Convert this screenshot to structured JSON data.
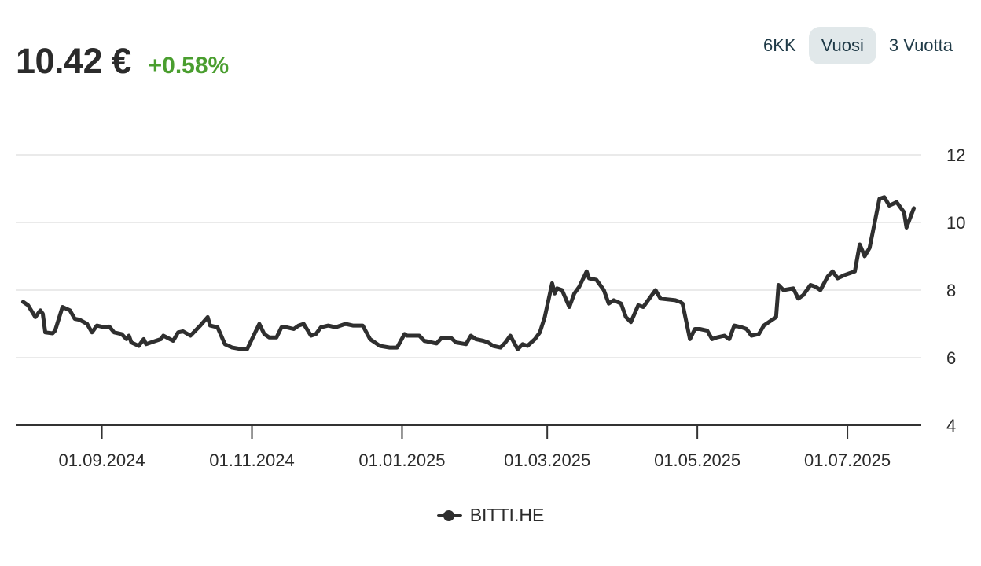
{
  "header": {
    "price": "10.42 €",
    "change": "+0.58%"
  },
  "range_tabs": [
    {
      "label": "6KK",
      "active": false
    },
    {
      "label": "Vuosi",
      "active": true
    },
    {
      "label": "3 Vuotta",
      "active": false
    }
  ],
  "colors": {
    "line": "#2f2f2f",
    "positive": "#4a9e2f",
    "grid": "#e3e3e3",
    "active_tab_bg": "#e1e8ea"
  },
  "chart_data": {
    "type": "line",
    "title": "",
    "xlabel": "",
    "ylabel": "",
    "ylim": [
      4,
      12
    ],
    "yticks": [
      4,
      6,
      8,
      10,
      12
    ],
    "xlim": [
      "2024-07-28",
      "2025-07-31"
    ],
    "xticks": [
      {
        "date": "2024-09-01",
        "label": "01.09.2024"
      },
      {
        "date": "2024-11-01",
        "label": "01.11.2024"
      },
      {
        "date": "2025-01-01",
        "label": "01.01.2025"
      },
      {
        "date": "2025-03-01",
        "label": "01.03.2025"
      },
      {
        "date": "2025-05-01",
        "label": "01.05.2025"
      },
      {
        "date": "2025-07-01",
        "label": "01.07.2025"
      }
    ],
    "grid": true,
    "legend_position": "bottom-center",
    "series": [
      {
        "name": "BITTI.HE",
        "points": [
          [
            "2024-07-31",
            7.65
          ],
          [
            "2024-08-02",
            7.55
          ],
          [
            "2024-08-05",
            7.2
          ],
          [
            "2024-08-07",
            7.4
          ],
          [
            "2024-08-08",
            7.3
          ],
          [
            "2024-08-09",
            6.75
          ],
          [
            "2024-08-12",
            6.72
          ],
          [
            "2024-08-13",
            6.8
          ],
          [
            "2024-08-16",
            7.5
          ],
          [
            "2024-08-19",
            7.4
          ],
          [
            "2024-08-21",
            7.15
          ],
          [
            "2024-08-23",
            7.12
          ],
          [
            "2024-08-26",
            7.0
          ],
          [
            "2024-08-28",
            6.75
          ],
          [
            "2024-08-30",
            6.95
          ],
          [
            "2024-09-02",
            6.9
          ],
          [
            "2024-09-04",
            6.92
          ],
          [
            "2024-09-06",
            6.75
          ],
          [
            "2024-09-09",
            6.7
          ],
          [
            "2024-09-11",
            6.55
          ],
          [
            "2024-09-12",
            6.65
          ],
          [
            "2024-09-13",
            6.45
          ],
          [
            "2024-09-16",
            6.35
          ],
          [
            "2024-09-18",
            6.55
          ],
          [
            "2024-09-19",
            6.4
          ],
          [
            "2024-09-23",
            6.5
          ],
          [
            "2024-09-25",
            6.55
          ],
          [
            "2024-09-26",
            6.65
          ],
          [
            "2024-09-30",
            6.5
          ],
          [
            "2024-10-02",
            6.75
          ],
          [
            "2024-10-04",
            6.78
          ],
          [
            "2024-10-07",
            6.65
          ],
          [
            "2024-10-09",
            6.8
          ],
          [
            "2024-10-11",
            6.95
          ],
          [
            "2024-10-14",
            7.2
          ],
          [
            "2024-10-15",
            6.95
          ],
          [
            "2024-10-18",
            6.9
          ],
          [
            "2024-10-21",
            6.4
          ],
          [
            "2024-10-24",
            6.3
          ],
          [
            "2024-10-28",
            6.25
          ],
          [
            "2024-10-30",
            6.25
          ],
          [
            "2024-11-04",
            7.0
          ],
          [
            "2024-11-06",
            6.7
          ],
          [
            "2024-11-08",
            6.6
          ],
          [
            "2024-11-11",
            6.6
          ],
          [
            "2024-11-13",
            6.9
          ],
          [
            "2024-11-15",
            6.9
          ],
          [
            "2024-11-18",
            6.85
          ],
          [
            "2024-11-20",
            6.95
          ],
          [
            "2024-11-22",
            7.0
          ],
          [
            "2024-11-25",
            6.65
          ],
          [
            "2024-11-27",
            6.7
          ],
          [
            "2024-11-29",
            6.9
          ],
          [
            "2024-12-02",
            6.95
          ],
          [
            "2024-12-05",
            6.9
          ],
          [
            "2024-12-09",
            7.0
          ],
          [
            "2024-12-12",
            6.95
          ],
          [
            "2024-12-16",
            6.95
          ],
          [
            "2024-12-19",
            6.55
          ],
          [
            "2024-12-23",
            6.35
          ],
          [
            "2024-12-27",
            6.3
          ],
          [
            "2024-12-30",
            6.3
          ],
          [
            "2025-01-02",
            6.7
          ],
          [
            "2025-01-03",
            6.65
          ],
          [
            "2025-01-08",
            6.65
          ],
          [
            "2025-01-10",
            6.5
          ],
          [
            "2025-01-13",
            6.45
          ],
          [
            "2025-01-15",
            6.42
          ],
          [
            "2025-01-17",
            6.58
          ],
          [
            "2025-01-21",
            6.58
          ],
          [
            "2025-01-23",
            6.45
          ],
          [
            "2025-01-27",
            6.4
          ],
          [
            "2025-01-29",
            6.65
          ],
          [
            "2025-01-31",
            6.55
          ],
          [
            "2025-02-03",
            6.5
          ],
          [
            "2025-02-05",
            6.45
          ],
          [
            "2025-02-07",
            6.35
          ],
          [
            "2025-02-10",
            6.3
          ],
          [
            "2025-02-12",
            6.45
          ],
          [
            "2025-02-14",
            6.65
          ],
          [
            "2025-02-17",
            6.25
          ],
          [
            "2025-02-19",
            6.4
          ],
          [
            "2025-02-21",
            6.35
          ],
          [
            "2025-02-24",
            6.55
          ],
          [
            "2025-02-26",
            6.75
          ],
          [
            "2025-02-28",
            7.2
          ],
          [
            "2025-03-03",
            8.2
          ],
          [
            "2025-03-04",
            7.9
          ],
          [
            "2025-03-05",
            8.05
          ],
          [
            "2025-03-07",
            8.0
          ],
          [
            "2025-03-10",
            7.5
          ],
          [
            "2025-03-12",
            7.9
          ],
          [
            "2025-03-14",
            8.1
          ],
          [
            "2025-03-17",
            8.55
          ],
          [
            "2025-03-18",
            8.35
          ],
          [
            "2025-03-21",
            8.3
          ],
          [
            "2025-03-24",
            8.0
          ],
          [
            "2025-03-26",
            7.6
          ],
          [
            "2025-03-28",
            7.7
          ],
          [
            "2025-03-31",
            7.6
          ],
          [
            "2025-04-02",
            7.2
          ],
          [
            "2025-04-04",
            7.05
          ],
          [
            "2025-04-07",
            7.55
          ],
          [
            "2025-04-09",
            7.5
          ],
          [
            "2025-04-11",
            7.7
          ],
          [
            "2025-04-14",
            8.0
          ],
          [
            "2025-04-16",
            7.75
          ],
          [
            "2025-04-22",
            7.7
          ],
          [
            "2025-04-24",
            7.65
          ],
          [
            "2025-04-25",
            7.6
          ],
          [
            "2025-04-28",
            6.55
          ],
          [
            "2025-04-30",
            6.85
          ],
          [
            "2025-05-02",
            6.85
          ],
          [
            "2025-05-05",
            6.8
          ],
          [
            "2025-05-07",
            6.55
          ],
          [
            "2025-05-09",
            6.6
          ],
          [
            "2025-05-12",
            6.65
          ],
          [
            "2025-05-14",
            6.55
          ],
          [
            "2025-05-16",
            6.95
          ],
          [
            "2025-05-19",
            6.9
          ],
          [
            "2025-05-21",
            6.85
          ],
          [
            "2025-05-23",
            6.65
          ],
          [
            "2025-05-26",
            6.7
          ],
          [
            "2025-05-28",
            6.95
          ],
          [
            "2025-05-30",
            7.05
          ],
          [
            "2025-06-02",
            7.2
          ],
          [
            "2025-06-03",
            8.15
          ],
          [
            "2025-06-05",
            8.0
          ],
          [
            "2025-06-09",
            8.05
          ],
          [
            "2025-06-11",
            7.75
          ],
          [
            "2025-06-13",
            7.85
          ],
          [
            "2025-06-16",
            8.15
          ],
          [
            "2025-06-18",
            8.1
          ],
          [
            "2025-06-20",
            8.0
          ],
          [
            "2025-06-23",
            8.4
          ],
          [
            "2025-06-25",
            8.55
          ],
          [
            "2025-06-27",
            8.35
          ],
          [
            "2025-06-30",
            8.45
          ],
          [
            "2025-07-02",
            8.5
          ],
          [
            "2025-07-04",
            8.55
          ],
          [
            "2025-07-06",
            9.35
          ],
          [
            "2025-07-08",
            9.0
          ],
          [
            "2025-07-10",
            9.25
          ],
          [
            "2025-07-14",
            10.7
          ],
          [
            "2025-07-16",
            10.75
          ],
          [
            "2025-07-18",
            10.5
          ],
          [
            "2025-07-21",
            10.6
          ],
          [
            "2025-07-24",
            10.3
          ],
          [
            "2025-07-25",
            9.85
          ],
          [
            "2025-07-28",
            10.42
          ]
        ]
      }
    ]
  }
}
